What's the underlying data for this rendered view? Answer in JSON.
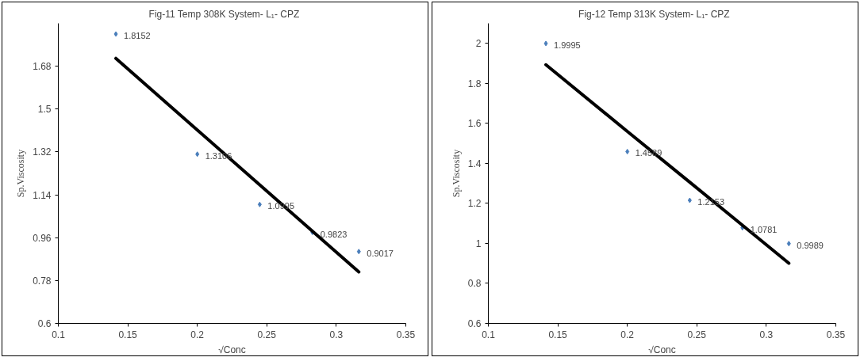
{
  "chart_data": [
    {
      "type": "scatter",
      "title": "Fig-11  Temp 308K     System- L₁-  CPZ",
      "xlabel": "√Conc",
      "ylabel": "Sp.Viscosity",
      "x": [
        0.1414,
        0.2,
        0.2449,
        0.2828,
        0.3162
      ],
      "series": [
        {
          "color": "#4a7ebb",
          "values": [
            1.8152,
            1.3106,
            1.0995,
            0.9823,
            0.9017
          ],
          "value_labels": [
            "1.8152",
            "1.3106",
            "1.0995",
            "0.9823",
            "0.9017"
          ]
        },
        {
          "type": "line",
          "color": "#000000",
          "marker": "none",
          "values": [
            1.713,
            1.412,
            1.182,
            0.987,
            0.816
          ]
        }
      ],
      "xlim": [
        0.1,
        0.35
      ],
      "xticks": [
        0.1,
        0.15,
        0.2,
        0.25,
        0.3,
        0.35
      ],
      "ylim": [
        0.6,
        1.86
      ],
      "yticks": [
        0.6,
        0.78,
        0.96,
        1.14,
        1.32,
        1.5,
        1.68
      ],
      "grid": false,
      "marker": "diamond"
    },
    {
      "type": "scatter",
      "title": "Fig-12  Temp 313K     System- L₁-  CPZ",
      "xlabel": "√Conc",
      "ylabel": "Sp.Viscosity",
      "x": [
        0.1414,
        0.2,
        0.2449,
        0.2828,
        0.3162
      ],
      "series": [
        {
          "color": "#4a7ebb",
          "values": [
            1.9995,
            1.4589,
            1.2153,
            1.0781,
            0.9989
          ],
          "value_labels": [
            "1.9995",
            "1.4589",
            "1.2153",
            "1.0781",
            "0.9989"
          ]
        },
        {
          "type": "line",
          "color": "#000000",
          "marker": "none",
          "values": [
            1.893,
            1.56,
            1.306,
            1.091,
            0.901
          ]
        }
      ],
      "xlim": [
        0.1,
        0.35
      ],
      "xticks": [
        0.1,
        0.15,
        0.2,
        0.25,
        0.3,
        0.35
      ],
      "ylim": [
        0.6,
        2.1
      ],
      "yticks": [
        0.6,
        0.8,
        1,
        1.2,
        1.4,
        1.6,
        1.8,
        2
      ],
      "grid": false,
      "marker": "diamond"
    }
  ]
}
